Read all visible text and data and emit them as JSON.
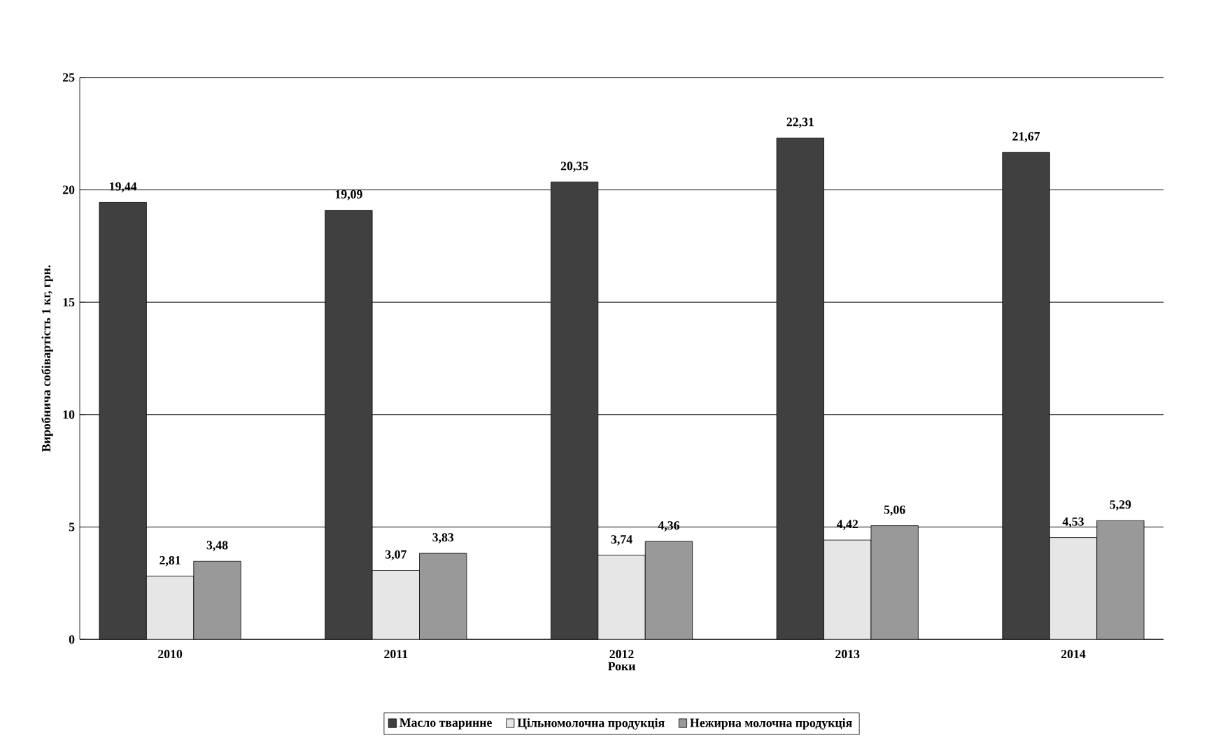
{
  "chart_data": {
    "type": "bar",
    "ylabel": "Виробнича собівартість 1 кг, грн.",
    "xlabel": "Роки",
    "categories": [
      "2010",
      "2011",
      "2012",
      "2013",
      "2014"
    ],
    "series": [
      {
        "name": "Масло тваринне",
        "color": "#404040",
        "values": [
          19.44,
          19.09,
          20.35,
          22.31,
          21.67
        ],
        "value_labels": [
          "19,44",
          "19,09",
          "20,35",
          "22,31",
          "21,67"
        ]
      },
      {
        "name": "Цільномолочна продукція",
        "color": "#e6e6e6",
        "values": [
          2.81,
          3.07,
          3.74,
          4.42,
          4.53
        ],
        "value_labels": [
          "2,81",
          "3,07",
          "3,74",
          "4,42",
          "4,53"
        ]
      },
      {
        "name": "Нежирна молочна продукція",
        "color": "#999999",
        "values": [
          3.48,
          3.83,
          4.36,
          5.06,
          5.29
        ],
        "value_labels": [
          "3,48",
          "3,83",
          "4,36",
          "5,06",
          "5,29"
        ]
      }
    ],
    "ylim": [
      0,
      25
    ],
    "yticks": [
      0,
      5,
      10,
      15,
      20,
      25
    ],
    "grid": "y",
    "legend": "bottom"
  }
}
